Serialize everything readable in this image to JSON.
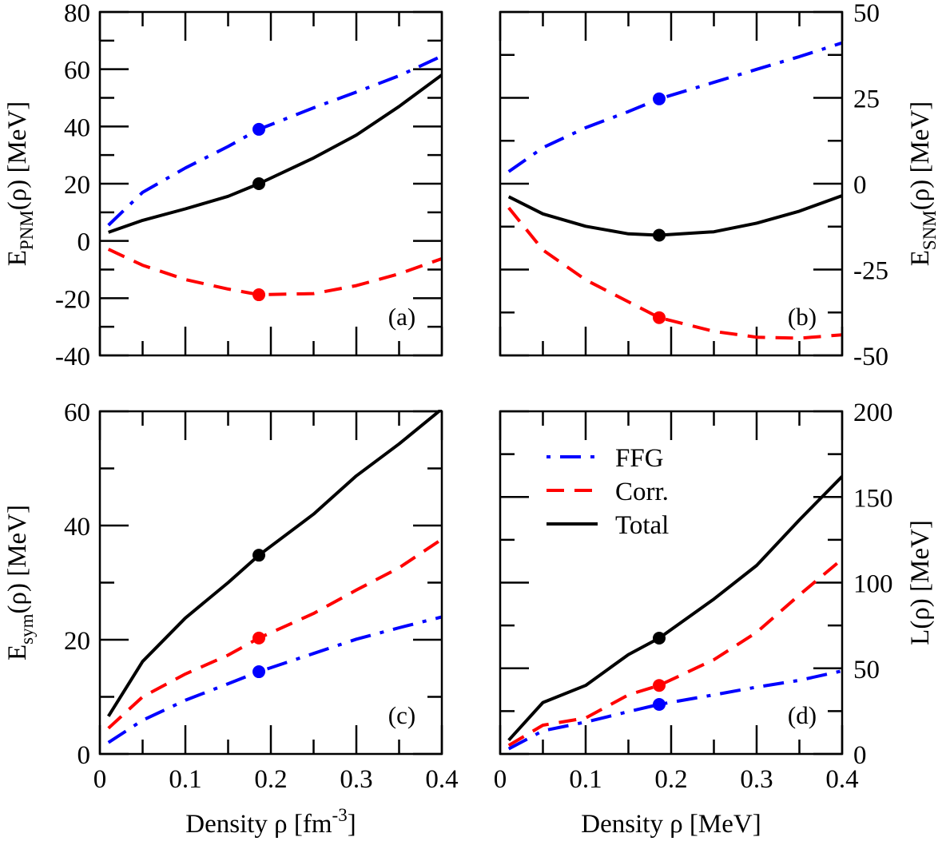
{
  "chart_data": [
    {
      "id": "a",
      "type": "line",
      "panel_label": "(a)",
      "ylabel": {
        "main": "E",
        "sub": "PNM",
        "rest": "(ρ) [MeV]"
      },
      "yaxis_side": "left",
      "xlim": [
        0,
        0.4
      ],
      "ylim": [
        -40,
        80
      ],
      "yticks": [
        -40,
        -20,
        0,
        20,
        40,
        60,
        80
      ],
      "yminor": 10,
      "xticks": [
        0,
        0.1,
        0.2,
        0.3,
        0.4
      ],
      "xminor": 0.05,
      "show_xtick_labels": false,
      "x": [
        0.01,
        0.05,
        0.1,
        0.15,
        0.186,
        0.25,
        0.3,
        0.35,
        0.4
      ],
      "series": [
        {
          "name": "FFG",
          "values": [
            5.5,
            17,
            25.5,
            33,
            39,
            46.5,
            52,
            57.7,
            64.6
          ]
        },
        {
          "name": "Corr.",
          "values": [
            -2.9,
            -8.5,
            -13.5,
            -16.8,
            -18.8,
            -18.4,
            -15.6,
            -11.5,
            -6.2
          ]
        },
        {
          "name": "Total",
          "values": [
            3,
            7.2,
            11.2,
            15.6,
            20,
            29,
            37,
            47,
            58
          ]
        }
      ],
      "markers_x": 0.186
    },
    {
      "id": "b",
      "type": "line",
      "panel_label": "(b)",
      "ylabel": {
        "main": "E",
        "sub": "SNM",
        "rest": "(ρ) [MeV]"
      },
      "yaxis_side": "right",
      "xlim": [
        0,
        0.4
      ],
      "ylim": [
        -50,
        50
      ],
      "yticks": [
        -50,
        -25,
        0,
        25,
        50
      ],
      "yminor": 12.5,
      "xticks": [
        0,
        0.1,
        0.2,
        0.3,
        0.4
      ],
      "xminor": 0.05,
      "show_xtick_labels": false,
      "x": [
        0.01,
        0.05,
        0.1,
        0.15,
        0.186,
        0.25,
        0.3,
        0.35,
        0.4
      ],
      "series": [
        {
          "name": "FFG",
          "values": [
            3.5,
            10.5,
            16.3,
            21,
            24.7,
            29.5,
            33.3,
            37,
            41
          ]
        },
        {
          "name": "Corr.",
          "values": [
            -7,
            -19.3,
            -28,
            -34.4,
            -39,
            -43,
            -44.7,
            -45,
            -44
          ]
        },
        {
          "name": "Total",
          "values": [
            -3.8,
            -8.8,
            -12.4,
            -14.6,
            -15,
            -14,
            -11.5,
            -8,
            -3.5
          ]
        }
      ],
      "markers_x": 0.186
    },
    {
      "id": "c",
      "type": "line",
      "panel_label": "(c)",
      "ylabel": {
        "main": "E",
        "sub": "sym",
        "rest": "(ρ) [MeV]"
      },
      "yaxis_side": "left",
      "xlabel": {
        "main": "Density ρ [fm",
        "sup": "-3",
        "rest": "]"
      },
      "xlim": [
        0,
        0.4
      ],
      "ylim": [
        0,
        60
      ],
      "yticks": [
        0,
        20,
        40,
        60
      ],
      "yminor": 10,
      "xticks": [
        0,
        0.1,
        0.2,
        0.3,
        0.4
      ],
      "xtick_labels": [
        "0",
        "0.1",
        "0.2",
        "0.3",
        "0.4"
      ],
      "xminor": 0.05,
      "show_xtick_labels": true,
      "x": [
        0.01,
        0.05,
        0.1,
        0.15,
        0.186,
        0.25,
        0.3,
        0.35,
        0.4
      ],
      "series": [
        {
          "name": "FFG",
          "values": [
            2,
            5.9,
            9.4,
            12.3,
            14.4,
            17.6,
            20.1,
            22.1,
            24
          ]
        },
        {
          "name": "Corr.",
          "values": [
            4.5,
            10,
            14,
            17.3,
            20.3,
            24.6,
            28.7,
            32.6,
            37.6
          ]
        },
        {
          "name": "Total",
          "values": [
            6.6,
            16.2,
            23.8,
            30,
            34.8,
            42,
            48.7,
            54.3,
            60.4
          ]
        }
      ],
      "markers_x": 0.186
    },
    {
      "id": "d",
      "type": "line",
      "panel_label": "(d)",
      "ylabel": {
        "main": "L(ρ) [MeV]"
      },
      "yaxis_side": "right",
      "xlabel": {
        "main": "Density ρ [MeV]"
      },
      "xlim": [
        0,
        0.4
      ],
      "ylim": [
        0,
        200
      ],
      "yticks": [
        0,
        50,
        100,
        150,
        200
      ],
      "yminor": 25,
      "xticks": [
        0,
        0.1,
        0.2,
        0.3,
        0.4
      ],
      "xtick_labels": [
        "0",
        "0.1",
        "0.2",
        "0.3",
        "0.4"
      ],
      "xminor": 0.05,
      "show_xtick_labels": true,
      "x": [
        0.01,
        0.05,
        0.1,
        0.15,
        0.186,
        0.25,
        0.3,
        0.35,
        0.4
      ],
      "series": [
        {
          "name": "FFG",
          "values": [
            3,
            13.5,
            18.6,
            24.7,
            28.9,
            34.5,
            39,
            43,
            48.5
          ]
        },
        {
          "name": "Corr.",
          "values": [
            5,
            16.8,
            21,
            34.5,
            40,
            55,
            71,
            92.8,
            113.7
          ]
        },
        {
          "name": "Total",
          "values": [
            8,
            30,
            40,
            58,
            67.6,
            90.4,
            110,
            136.6,
            162
          ]
        }
      ],
      "markers_x": 0.186,
      "legend": {
        "placement": "top-left",
        "entries": [
          "FFG",
          "Corr.",
          "Total"
        ]
      }
    }
  ],
  "series_colors": {
    "FFG": "#0000ff",
    "Corr.": "#ff0000",
    "Total": "#000000"
  },
  "series_dash": {
    "FFG": "dashdot",
    "Corr.": "dashed",
    "Total": "solid"
  }
}
